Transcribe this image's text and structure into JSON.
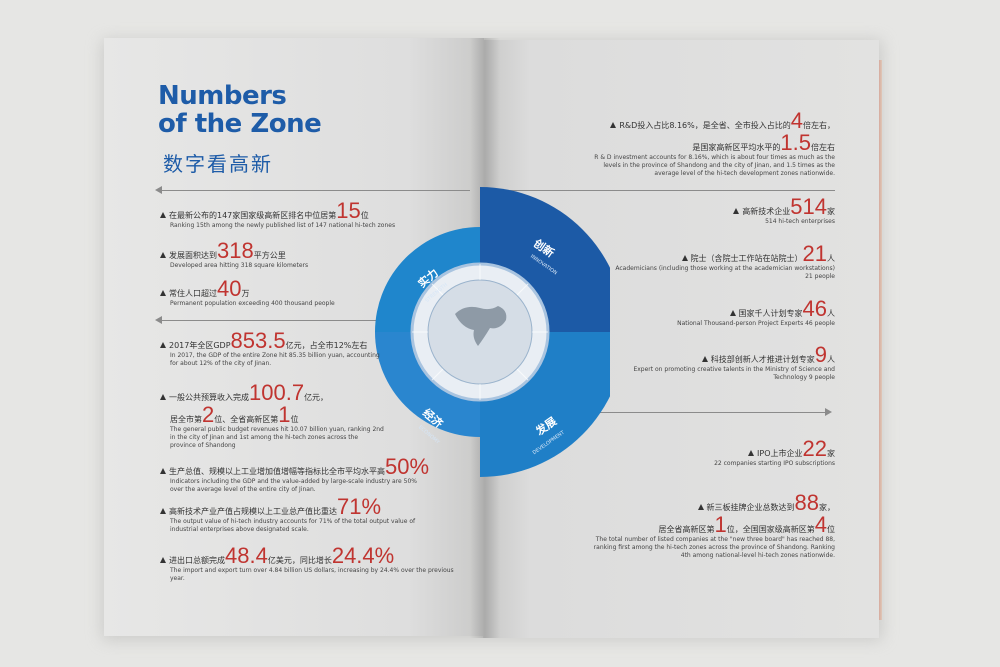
{
  "title": {
    "en": "Numbers of the Zone",
    "en_line1": "Numbers",
    "en_line2": "of the Zone",
    "zh": "数字看高新"
  },
  "wheel": {
    "strength": {
      "zh": "实力",
      "en": "STRENGTH"
    },
    "innovation": {
      "zh": "创新",
      "en": "INNOVATION"
    },
    "economy": {
      "zh": "经济",
      "en": "ECONOMY"
    },
    "development": {
      "zh": "发展",
      "en": "DEVELOPMENT"
    }
  },
  "left": [
    {
      "pre": "在最新公布的147家国家级高新区排名中位居第",
      "num": "15",
      "post": "位",
      "en": "Ranking 15th among the newly published list of 147 national hi-tech zones"
    },
    {
      "pre": "发展面积达到",
      "num": "318",
      "post": "平方公里",
      "en": "Developed area hitting 318 square kilometers"
    },
    {
      "pre": "常住人口超过",
      "num": "40",
      "post": "万",
      "en": "Permanent population exceeding 400 thousand people"
    },
    {
      "pre": "2017年全区GDP",
      "num": "853.5",
      "post": "亿元，占全市12%左右",
      "en": "In 2017, the GDP of the entire Zone hit 85.35 billion yuan, accounting for about 12% of the city of Jinan."
    },
    {
      "pre": "一般公共预算收入完成",
      "num": "100.7",
      "post": "亿元，",
      "line2_pre": "居全市第",
      "num2": "2",
      "line2_mid": "位、全省高新区第",
      "num3": "1",
      "line2_post": "位",
      "en": "The general public budget revenues hit 10.07 billion yuan, ranking 2nd in the city of Jinan and 1st among the hi-tech zones across the province of Shandong"
    },
    {
      "pre": "生产总值、规模以上工业增加值增幅等指标比全市平均水平高",
      "num": "50%",
      "post": "",
      "en": "Indicators including the GDP and the value-added by large-scale industry are 50% over the average level of the entire city of Jinan."
    },
    {
      "pre": "高新技术产业产值占规模以上工业总产值比重达",
      "num": "71%",
      "post": "",
      "en": "The output value of hi-tech industry accounts for 71% of the total output value of industrial enterprises above designated scale."
    },
    {
      "pre": "进出口总额完成",
      "num": "48.4",
      "post": "亿美元，同比增长",
      "num2": "24.4%",
      "en": "The import and export turn over 4.84 billion US dollars, increasing by 24.4% over the previous year."
    }
  ],
  "right": [
    {
      "pre": "R&D投入占比8.16%，是全省、全市投入占比的",
      "num": "4",
      "post": "倍左右，",
      "line2_pre": "是国家高新区平均水平的",
      "num2": "1.5",
      "line2_post": "倍左右",
      "en": "R & D investment accounts for 8.16%, which is about four times as much as the levels in the province of Shandong and the city of Jinan, and 1.5 times as the average level of the hi-tech development zones nationwide."
    },
    {
      "pre": "高新技术企业",
      "num": "514",
      "post": "家",
      "en": "514 hi-tech enterprises"
    },
    {
      "pre": "院士（含院士工作站在站院士）",
      "num": "21",
      "post": "人",
      "en": "Academicians (including those working at the academician workstations) 21 people"
    },
    {
      "pre": "国家千人计划专家",
      "num": "46",
      "post": "人",
      "en": "National Thousand-person Project Experts 46 people"
    },
    {
      "pre": "科技部创新人才推进计划专家",
      "num": "9",
      "post": "人",
      "en": "Expert on promoting creative talents in the Ministry of Science and Technology 9 people"
    },
    {
      "pre": "IPO上市企业",
      "num": "22",
      "post": "家",
      "en": "22 companies starting IPO subscriptions"
    },
    {
      "pre": "新三板挂牌企业总数达到",
      "num": "88",
      "post": "家，",
      "line2_pre": "居全省高新区第",
      "num2": "1",
      "line2_mid": "位，全国国家级高新区第",
      "num3": "4",
      "line2_post": "位",
      "en": "The total number of listed companies at the \"new three board\" has reached 88, ranking first among the hi-tech zones across the province of Shandong. Ranking 4th among national-level hi-tech zones nationwide."
    }
  ]
}
